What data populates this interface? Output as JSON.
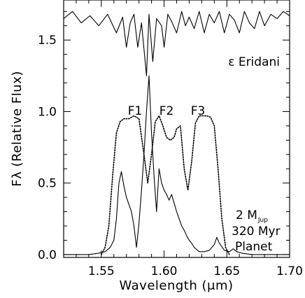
{
  "chart_data": {
    "type": "line",
    "title": "",
    "xlabel": "Wavelength (μm)",
    "ylabel": "Fλ (Relative Flux)",
    "xlim": [
      1.52,
      1.7
    ],
    "ylim": [
      -0.02,
      1.78
    ],
    "x_ticks": [
      "1.55",
      "1.60",
      "1.65",
      "1.70"
    ],
    "x_tick_values": [
      1.55,
      1.6,
      1.65,
      1.7
    ],
    "y_ticks": [
      "0.0",
      "0.5",
      "1.0",
      "1.5"
    ],
    "y_tick_values": [
      0.0,
      0.5,
      1.0,
      1.5
    ],
    "grid": false,
    "annotations": {
      "star": "ε Eridani",
      "filter_labels": [
        "F1",
        "F2",
        "F3"
      ],
      "planet_line1_main": "2 M",
      "planet_line1_sub": "Jup",
      "planet_line2": "320 Myr",
      "planet_line3": "Planet"
    },
    "series": [
      {
        "style": "solid",
        "x": [
          1.52,
          1.53,
          1.54,
          1.548,
          1.553,
          1.557,
          1.56,
          1.562,
          1.564,
          1.566,
          1.568,
          1.57,
          1.572,
          1.574,
          1.576,
          1.578,
          1.58,
          1.582,
          1.584,
          1.586,
          1.588,
          1.59,
          1.592,
          1.594,
          1.596,
          1.598,
          1.6,
          1.602,
          1.604,
          1.606,
          1.608,
          1.61,
          1.612,
          1.614,
          1.616,
          1.618,
          1.62,
          1.622,
          1.624,
          1.628,
          1.632,
          1.636,
          1.64,
          1.642,
          1.644,
          1.648,
          1.652,
          1.655,
          1.658,
          1.662,
          1.67,
          1.68,
          1.7
        ],
        "values": [
          0.0,
          0.0,
          0.0,
          0.01,
          0.02,
          0.05,
          0.1,
          0.25,
          0.5,
          0.58,
          0.48,
          0.4,
          0.35,
          0.3,
          0.2,
          0.05,
          0.22,
          0.45,
          0.7,
          1.0,
          1.25,
          0.85,
          0.55,
          0.3,
          0.6,
          0.5,
          0.45,
          0.42,
          0.38,
          0.42,
          0.36,
          0.3,
          0.25,
          0.2,
          0.17,
          0.13,
          0.1,
          0.08,
          0.05,
          0.02,
          0.02,
          0.03,
          0.07,
          0.12,
          0.08,
          0.03,
          0.02,
          0.04,
          0.02,
          0.01,
          0.0,
          0.0,
          0.0
        ]
      },
      {
        "style": "dotted",
        "x": [
          1.55,
          1.553,
          1.556,
          1.559,
          1.562,
          1.565,
          1.568,
          1.572,
          1.576,
          1.58,
          1.584,
          1.587,
          1.59,
          1.593,
          1.596,
          1.599,
          1.602,
          1.605,
          1.608,
          1.61,
          1.613,
          1.616,
          1.619,
          1.622,
          1.625,
          1.628,
          1.631,
          1.634,
          1.637,
          1.64,
          1.643,
          1.646,
          1.649,
          1.652
        ],
        "values": [
          0.0,
          0.05,
          0.2,
          0.55,
          0.85,
          0.93,
          0.95,
          0.95,
          0.97,
          0.95,
          0.7,
          0.5,
          0.7,
          0.93,
          0.97,
          0.9,
          0.82,
          0.8,
          0.82,
          0.88,
          0.9,
          0.6,
          0.45,
          0.65,
          0.92,
          0.97,
          0.97,
          0.97,
          0.96,
          0.9,
          0.6,
          0.25,
          0.05,
          0.0
        ]
      },
      {
        "style": "solid",
        "x": [
          1.52,
          1.527,
          1.534,
          1.541,
          1.548,
          1.555,
          1.562,
          1.567,
          1.57,
          1.573,
          1.576,
          1.579,
          1.582,
          1.586,
          1.588,
          1.591,
          1.594,
          1.598,
          1.6,
          1.603,
          1.606,
          1.61,
          1.614,
          1.617,
          1.62,
          1.624,
          1.628,
          1.632,
          1.636,
          1.64,
          1.644,
          1.648,
          1.652,
          1.656,
          1.66,
          1.664,
          1.668,
          1.672,
          1.676,
          1.68,
          1.685,
          1.69,
          1.695,
          1.7
        ],
        "values": [
          1.65,
          1.7,
          1.62,
          1.67,
          1.6,
          1.68,
          1.55,
          1.66,
          1.45,
          1.62,
          1.68,
          1.45,
          1.62,
          1.25,
          1.68,
          1.35,
          1.65,
          1.6,
          1.45,
          1.68,
          1.63,
          1.55,
          1.7,
          1.6,
          1.66,
          1.58,
          1.7,
          1.55,
          1.68,
          1.62,
          1.7,
          1.55,
          1.68,
          1.64,
          1.55,
          1.7,
          1.62,
          1.58,
          1.7,
          1.6,
          1.68,
          1.65,
          1.7,
          1.67
        ]
      }
    ]
  }
}
